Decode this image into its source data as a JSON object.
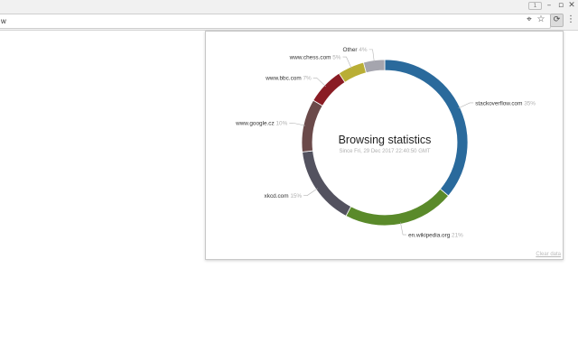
{
  "window": {
    "badge": "1",
    "minimize": "–",
    "maximize": "▫",
    "close": "✕"
  },
  "toolbar": {
    "url": "w",
    "icons": [
      "target-icon",
      "star-icon",
      "extension-icon",
      "menu-icon"
    ]
  },
  "popup": {
    "title": "Browsing statistics",
    "subtitle": "Since Fri, 29 Dec 2017 22:40:50 GMT",
    "clear_label": "Clear data"
  },
  "chart_data": {
    "type": "pie",
    "style": "donut",
    "series": [
      {
        "name": "stackoverflow.com",
        "value": 35,
        "label": "35%",
        "color": "#2a6a9c"
      },
      {
        "name": "en.wikipedia.org",
        "value": 21,
        "label": "21%",
        "color": "#5a8a2a"
      },
      {
        "name": "xkcd.com",
        "value": 15,
        "label": "15%",
        "color": "#53525f"
      },
      {
        "name": "www.google.cz",
        "value": 10,
        "label": "10%",
        "color": "#6b4a4a"
      },
      {
        "name": "www.bbc.com",
        "value": 7,
        "label": "7%",
        "color": "#8a1c24"
      },
      {
        "name": "www.chess.com",
        "value": 5,
        "label": "5%",
        "color": "#b9ae35"
      },
      {
        "name": "Other",
        "value": 4,
        "label": "4%",
        "color": "#a5a5ae"
      }
    ]
  }
}
